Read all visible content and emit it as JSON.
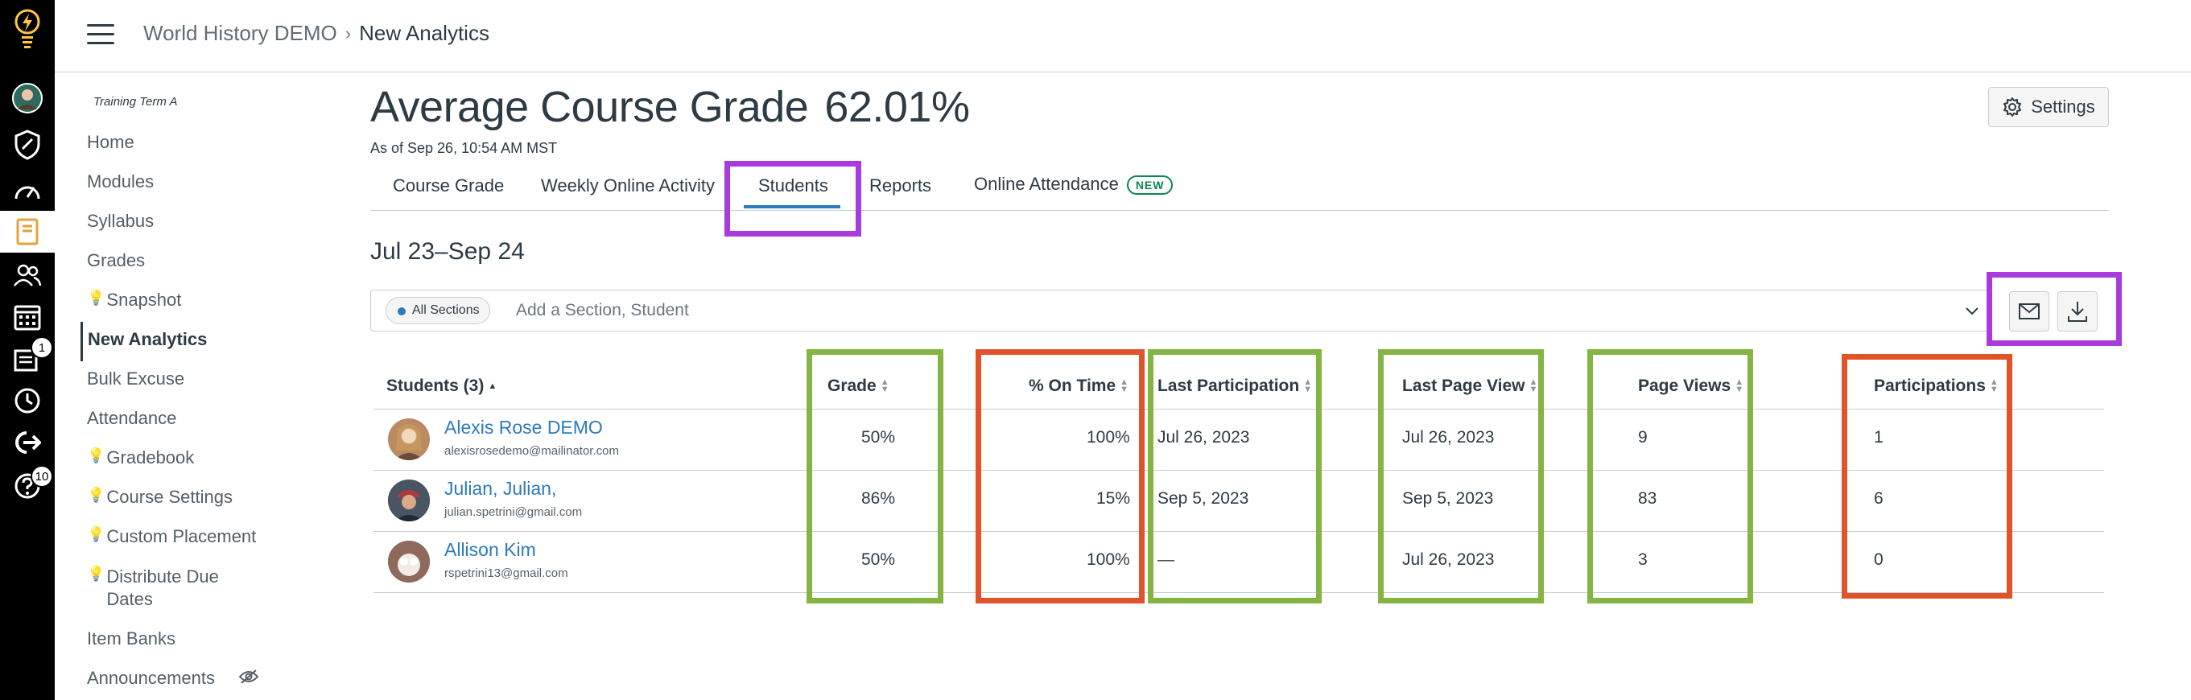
{
  "rail": {
    "badges": [
      "1",
      "10"
    ]
  },
  "topbar": {
    "breadcrumb_course": "World History DEMO",
    "breadcrumb_sep": "›",
    "breadcrumb_page": "New Analytics"
  },
  "course_nav": {
    "term": "Training Term A",
    "items": [
      {
        "label": "Home"
      },
      {
        "label": "Modules"
      },
      {
        "label": "Syllabus"
      },
      {
        "label": "Grades"
      },
      {
        "label": "Snapshot"
      },
      {
        "label": "New Analytics"
      },
      {
        "label": "Bulk Excuse"
      },
      {
        "label": "Attendance"
      },
      {
        "label": "Gradebook"
      },
      {
        "label": "Course Settings"
      },
      {
        "label": "Custom Placement"
      },
      {
        "label": "Distribute Due Dates"
      },
      {
        "label": "Item Banks"
      },
      {
        "label": "Announcements"
      }
    ]
  },
  "main": {
    "title": "Average Course Grade",
    "average_grade": "62.01%",
    "as_of": "As of Sep 26, 10:54 AM MST",
    "settings_label": "Settings",
    "tabs": [
      {
        "label": "Course Grade"
      },
      {
        "label": "Weekly Online Activity"
      },
      {
        "label": "Students"
      },
      {
        "label": "Reports"
      },
      {
        "label": "Online Attendance"
      }
    ],
    "new_badge": "NEW",
    "date_range": "Jul 23–Sep 24",
    "filter": {
      "chip": "All Sections",
      "placeholder": "Add a Section, Student"
    }
  },
  "table": {
    "headers": {
      "students": "Students (3)",
      "grade": "Grade",
      "on_time": "% On Time",
      "last_participation": "Last Participation",
      "last_page_view": "Last Page View",
      "page_views": "Page Views",
      "participations": "Participations"
    },
    "rows": [
      {
        "name": "Alexis Rose DEMO",
        "email": "alexisrosedemo@mailinator.com",
        "grade": "50%",
        "on_time": "100%",
        "last_participation": "Jul 26, 2023",
        "last_page_view": "Jul 26, 2023",
        "page_views": "9",
        "participations": "1",
        "avatar_color": "#b98a63"
      },
      {
        "name": "Julian, Julian,",
        "email": "julian.spetrini@gmail.com",
        "grade": "86%",
        "on_time": "15%",
        "last_participation": "Sep 5, 2023",
        "last_page_view": "Sep 5, 2023",
        "page_views": "83",
        "participations": "6",
        "avatar_color": "#3b4a5a"
      },
      {
        "name": "Allison Kim",
        "email": "rspetrini13@gmail.com",
        "grade": "50%",
        "on_time": "100%",
        "last_participation": "—",
        "last_page_view": "Jul 26, 2023",
        "page_views": "3",
        "participations": "0",
        "avatar_color": "#a07868"
      }
    ]
  },
  "colors": {
    "highlight_purple": "#a93bde",
    "highlight_green": "#84b441",
    "highlight_red": "#e1542a",
    "link_blue": "#2b7abc"
  }
}
